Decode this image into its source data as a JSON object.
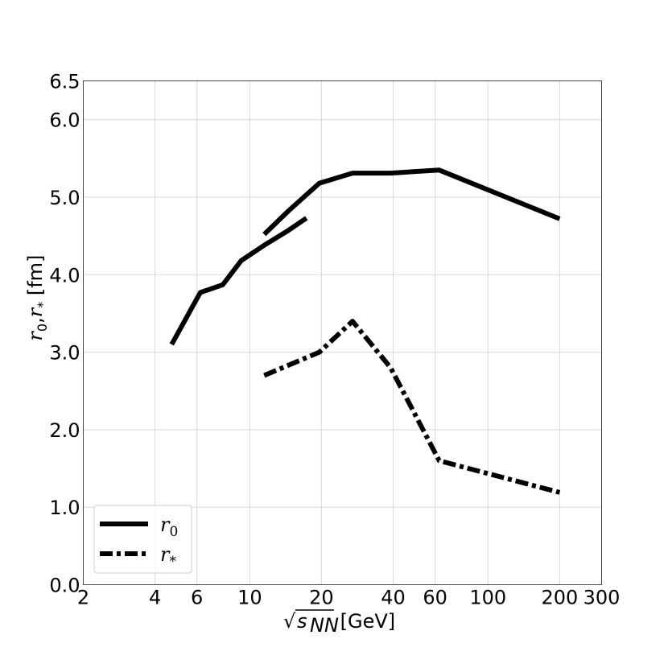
{
  "chart_data": {
    "type": "line",
    "xscale": "log",
    "xlim": [
      2,
      300
    ],
    "ylim": [
      0.0,
      6.5
    ],
    "xlabel_prefix": "√",
    "xlabel_var": "s",
    "xlabel_sub": "NN",
    "xlabel_unit": " [GeV]",
    "ylabel_parts": {
      "r": "r",
      "zero": "0",
      "comma": ",",
      "star": "*",
      "unit": " [fm]"
    },
    "xticks": [
      {
        "value": 2,
        "label": "2"
      },
      {
        "value": 4,
        "label": "4"
      },
      {
        "value": 6,
        "label": "6"
      },
      {
        "value": 10,
        "label": "10"
      },
      {
        "value": 20,
        "label": "20"
      },
      {
        "value": 40,
        "label": "40"
      },
      {
        "value": 60,
        "label": "60"
      },
      {
        "value": 100,
        "label": "100"
      },
      {
        "value": 200,
        "label": "200"
      },
      {
        "value": 300,
        "label": "300"
      }
    ],
    "yticks": [
      {
        "value": 0.0,
        "label": "0.0"
      },
      {
        "value": 1.0,
        "label": "1.0"
      },
      {
        "value": 2.0,
        "label": "2.0"
      },
      {
        "value": 3.0,
        "label": "3.0"
      },
      {
        "value": 4.0,
        "label": "4.0"
      },
      {
        "value": 5.0,
        "label": "5.0"
      },
      {
        "value": 6.0,
        "label": "6.0"
      },
      {
        "value": 6.5,
        "label": "6.5"
      }
    ],
    "grid": true,
    "legend_position": "lower-left",
    "series": [
      {
        "name": "r0",
        "legend_main": "r",
        "legend_sub": "0",
        "style": "solid",
        "color": "#000000",
        "segments": [
          [
            [
              4.7,
              3.1
            ],
            [
              6.2,
              3.77
            ],
            [
              7.7,
              3.87
            ],
            [
              9.2,
              4.18
            ],
            [
              11.5,
              4.38
            ],
            [
              14.5,
              4.57
            ],
            [
              17.3,
              4.73
            ]
          ],
          [
            [
              11.5,
              4.52
            ],
            [
              14.5,
              4.82
            ],
            [
              19.6,
              5.18
            ],
            [
              27,
              5.31
            ],
            [
              39,
              5.31
            ],
            [
              62.4,
              5.35
            ],
            [
              200,
              4.72
            ]
          ]
        ]
      },
      {
        "name": "r*",
        "legend_main": "r",
        "legend_sub": "*",
        "style": "dashdot",
        "color": "#000000",
        "segments": [
          [
            [
              11.5,
              2.7
            ],
            [
              19.6,
              3.0
            ],
            [
              27,
              3.4
            ],
            [
              39,
              2.8
            ],
            [
              62.4,
              1.6
            ],
            [
              200,
              1.19
            ]
          ]
        ]
      }
    ]
  }
}
